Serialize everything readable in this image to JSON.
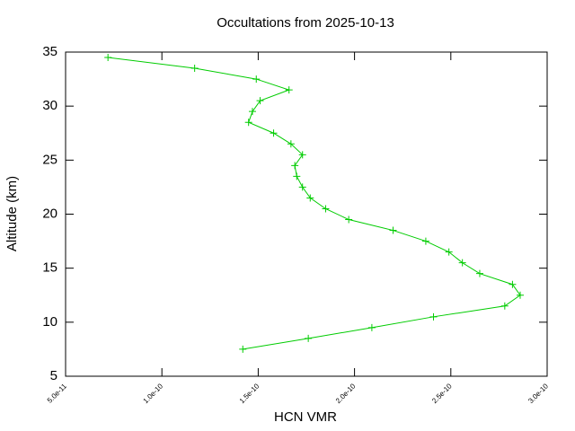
{
  "chart_data": {
    "type": "line",
    "title": "Occultations from 2025-10-13",
    "x_label": "HCN VMR",
    "y_label": "Altitude (km)",
    "color": "#00cc00",
    "marker": "+",
    "x": [
      7.2e-11,
      1.17e-10,
      1.49e-10,
      1.66e-10,
      1.51e-10,
      1.47e-10,
      1.45e-10,
      1.58e-10,
      1.67e-10,
      1.73e-10,
      1.69e-10,
      1.7e-10,
      1.73e-10,
      1.77e-10,
      1.85e-10,
      1.97e-10,
      2.2e-10,
      2.37e-10,
      2.49e-10,
      2.56e-10,
      2.65e-10,
      2.82e-10,
      2.86e-10,
      2.78e-10,
      2.41e-10,
      2.09e-10,
      1.76e-10,
      1.42e-10
    ],
    "values": [
      34.5,
      33.5,
      32.5,
      31.5,
      30.5,
      29.5,
      28.5,
      27.5,
      26.5,
      25.5,
      24.5,
      23.5,
      22.5,
      21.5,
      20.5,
      19.5,
      18.5,
      17.5,
      16.5,
      15.5,
      14.5,
      13.5,
      12.5,
      11.5,
      10.5,
      9.5,
      8.5,
      7.5
    ],
    "xlim": [
      5e-11,
      3e-10
    ],
    "xticks": [
      {
        "value": 5e-11,
        "label": "5.0e-11"
      },
      {
        "value": 1e-10,
        "label": "1.0e-10"
      },
      {
        "value": 1.5e-10,
        "label": "1.5e-10"
      },
      {
        "value": 2e-10,
        "label": "2.0e-10"
      },
      {
        "value": 2.5e-10,
        "label": "2.5e-10"
      },
      {
        "value": 3e-10,
        "label": "3.0e-10"
      }
    ],
    "ylim": [
      5,
      35
    ],
    "yticks": [
      5,
      10,
      15,
      20,
      25,
      30,
      35
    ]
  }
}
